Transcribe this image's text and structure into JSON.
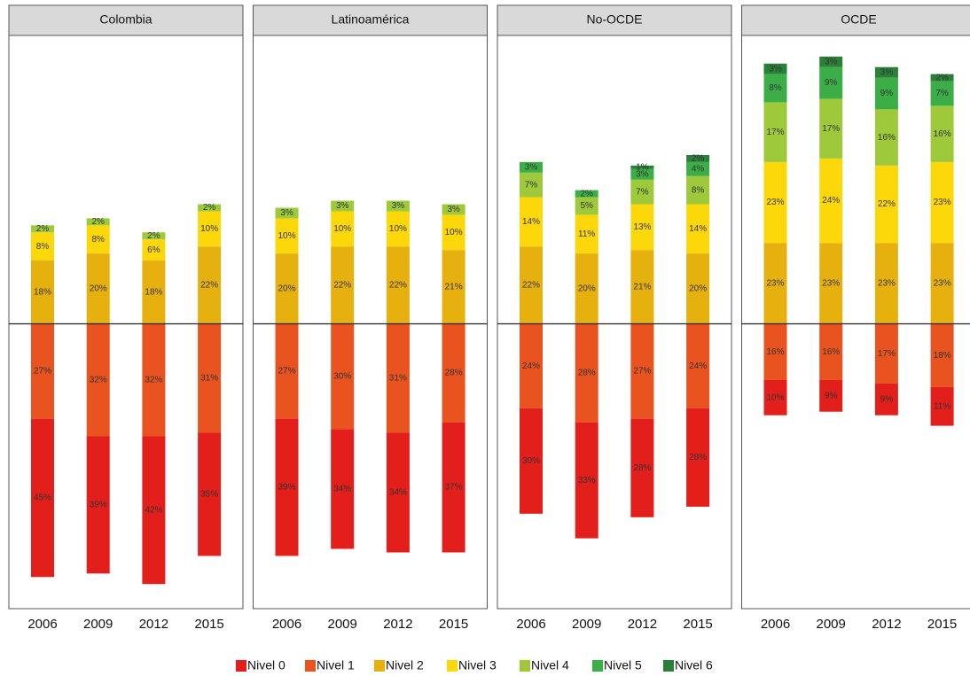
{
  "chart_data": [
    {
      "type": "bar",
      "title": "Colombia",
      "categories": [
        "2006",
        "2009",
        "2012",
        "2015"
      ],
      "ylim": [
        -81,
        82
      ],
      "series": [
        {
          "name": "Nivel 0",
          "color": "#e31f1c",
          "values": [
            -45,
            -39,
            -42,
            -35
          ],
          "value_labels": [
            "45%",
            "39%",
            "42%",
            "35%"
          ]
        },
        {
          "name": "Nivel 1",
          "color": "#e8531f",
          "values": [
            -27,
            -32,
            -32,
            -31
          ],
          "value_labels": [
            "27%",
            "32%",
            "32%",
            "31%"
          ]
        },
        {
          "name": "Nivel 2",
          "color": "#e6b10f",
          "values": [
            18,
            20,
            18,
            22
          ],
          "value_labels": [
            "18%",
            "20%",
            "18%",
            "22%"
          ]
        },
        {
          "name": "Nivel 3",
          "color": "#fcd80b",
          "values": [
            8,
            8,
            6,
            10
          ],
          "value_labels": [
            "8%",
            "8%",
            "6%",
            "10%"
          ]
        },
        {
          "name": "Nivel 4",
          "color": "#9dc93a",
          "values": [
            2,
            2,
            2,
            2
          ],
          "value_labels": [
            "2%",
            "2%",
            "2%",
            "2%"
          ]
        },
        {
          "name": "Nivel 5",
          "color": "#3cae48",
          "values": [
            null,
            null,
            null,
            null
          ],
          "value_labels": [
            null,
            null,
            null,
            null
          ]
        },
        {
          "name": "Nivel 6",
          "color": "#2a8038",
          "values": [
            null,
            null,
            null,
            null
          ],
          "value_labels": [
            null,
            null,
            null,
            null
          ]
        }
      ]
    },
    {
      "type": "bar",
      "title": "Latinoamérica",
      "categories": [
        "2006",
        "2009",
        "2012",
        "2015"
      ],
      "ylim": [
        -81,
        82
      ],
      "series": [
        {
          "name": "Nivel 0",
          "color": "#e31f1c",
          "values": [
            -39,
            -34,
            -34,
            -37
          ],
          "value_labels": [
            "39%",
            "34%",
            "34%",
            "37%"
          ]
        },
        {
          "name": "Nivel 1",
          "color": "#e8531f",
          "values": [
            -27,
            -30,
            -31,
            -28
          ],
          "value_labels": [
            "27%",
            "30%",
            "31%",
            "28%"
          ]
        },
        {
          "name": "Nivel 2",
          "color": "#e6b10f",
          "values": [
            20,
            22,
            22,
            21
          ],
          "value_labels": [
            "20%",
            "22%",
            "22%",
            "21%"
          ]
        },
        {
          "name": "Nivel 3",
          "color": "#fcd80b",
          "values": [
            10,
            10,
            10,
            10
          ],
          "value_labels": [
            "10%",
            "10%",
            "10%",
            "10%"
          ]
        },
        {
          "name": "Nivel 4",
          "color": "#9dc93a",
          "values": [
            3,
            3,
            3,
            3
          ],
          "value_labels": [
            "3%",
            "3%",
            "3%",
            "3%"
          ]
        },
        {
          "name": "Nivel 5",
          "color": "#3cae48",
          "values": [
            null,
            null,
            null,
            null
          ],
          "value_labels": [
            null,
            null,
            null,
            null
          ]
        },
        {
          "name": "Nivel 6",
          "color": "#2a8038",
          "values": [
            null,
            null,
            null,
            null
          ],
          "value_labels": [
            null,
            null,
            null,
            null
          ]
        }
      ]
    },
    {
      "type": "bar",
      "title": "No-OCDE",
      "categories": [
        "2006",
        "2009",
        "2012",
        "2015"
      ],
      "ylim": [
        -81,
        82
      ],
      "series": [
        {
          "name": "Nivel 0",
          "color": "#e31f1c",
          "values": [
            -30,
            -33,
            -28,
            -28
          ],
          "value_labels": [
            "30%",
            "33%",
            "28%",
            "28%"
          ]
        },
        {
          "name": "Nivel 1",
          "color": "#e8531f",
          "values": [
            -24,
            -28,
            -27,
            -24
          ],
          "value_labels": [
            "24%",
            "28%",
            "27%",
            "24%"
          ]
        },
        {
          "name": "Nivel 2",
          "color": "#e6b10f",
          "values": [
            22,
            20,
            21,
            20
          ],
          "value_labels": [
            "22%",
            "20%",
            "21%",
            "20%"
          ]
        },
        {
          "name": "Nivel 3",
          "color": "#fcd80b",
          "values": [
            14,
            11,
            13,
            14
          ],
          "value_labels": [
            "14%",
            "11%",
            "13%",
            "14%"
          ]
        },
        {
          "name": "Nivel 4",
          "color": "#9dc93a",
          "values": [
            7,
            5,
            7,
            8
          ],
          "value_labels": [
            "7%",
            "5%",
            "7%",
            "8%"
          ]
        },
        {
          "name": "Nivel 5",
          "color": "#3cae48",
          "values": [
            3,
            2,
            3,
            4
          ],
          "value_labels": [
            "3%",
            "2%",
            "3%",
            "4%"
          ]
        },
        {
          "name": "Nivel 6",
          "color": "#2a8038",
          "values": [
            null,
            null,
            1,
            2
          ],
          "value_labels": [
            null,
            null,
            "1%",
            "2%"
          ]
        }
      ]
    },
    {
      "type": "bar",
      "title": "OCDE",
      "categories": [
        "2006",
        "2009",
        "2012",
        "2015"
      ],
      "ylim": [
        -81,
        82
      ],
      "series": [
        {
          "name": "Nivel 0",
          "color": "#e31f1c",
          "values": [
            -10,
            -9,
            -9,
            -11
          ],
          "value_labels": [
            "10%",
            "9%",
            "9%",
            "11%"
          ]
        },
        {
          "name": "Nivel 1",
          "color": "#e8531f",
          "values": [
            -16,
            -16,
            -17,
            -18
          ],
          "value_labels": [
            "16%",
            "16%",
            "17%",
            "18%"
          ]
        },
        {
          "name": "Nivel 2",
          "color": "#e6b10f",
          "values": [
            23,
            23,
            23,
            23
          ],
          "value_labels": [
            "23%",
            "23%",
            "23%",
            "23%"
          ]
        },
        {
          "name": "Nivel 3",
          "color": "#fcd80b",
          "values": [
            23,
            24,
            22,
            23
          ],
          "value_labels": [
            "23%",
            "24%",
            "22%",
            "23%"
          ]
        },
        {
          "name": "Nivel 4",
          "color": "#9dc93a",
          "values": [
            17,
            17,
            16,
            16
          ],
          "value_labels": [
            "17%",
            "17%",
            "16%",
            "16%"
          ]
        },
        {
          "name": "Nivel 5",
          "color": "#3cae48",
          "values": [
            8,
            9,
            9,
            7
          ],
          "value_labels": [
            "8%",
            "9%",
            "9%",
            "7%"
          ]
        },
        {
          "name": "Nivel 6",
          "color": "#2a8038",
          "values": [
            3,
            3,
            3,
            2
          ],
          "value_labels": [
            "3%",
            "3%",
            "3%",
            "2%"
          ]
        }
      ]
    }
  ]
}
